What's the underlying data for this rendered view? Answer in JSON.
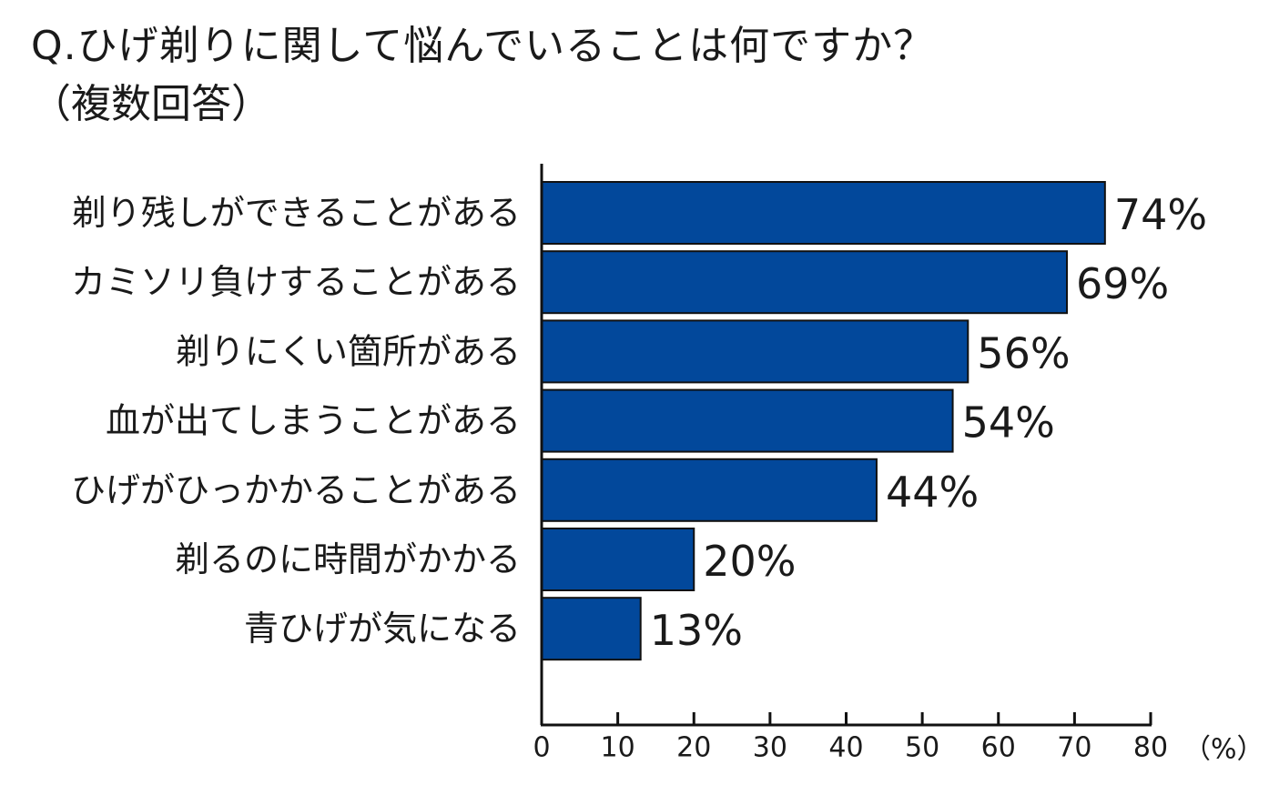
{
  "chart_data": {
    "type": "bar",
    "orientation": "horizontal",
    "title": "Q.ひげ剃りに関して悩んでいることは何ですか？",
    "subtitle": "（複数回答）",
    "categories": [
      "剃り残しができることがある",
      "カミソリ負けすることがある",
      "剃りにくい箇所がある",
      "血が出てしまうことがある",
      "ひげがひっかかることがある",
      "剃るのに時間がかかる",
      "青ひげが気になる"
    ],
    "values": [
      74,
      69,
      56,
      54,
      44,
      20,
      13
    ],
    "value_labels": [
      "74%",
      "69%",
      "56%",
      "54%",
      "44%",
      "20%",
      "13%"
    ],
    "xlim": [
      0,
      80
    ],
    "x_ticks": [
      0,
      10,
      20,
      30,
      40,
      50,
      60,
      70,
      80
    ],
    "x_tick_labels": [
      "0",
      "10",
      "20",
      "30",
      "40",
      "50",
      "60",
      "70",
      "80"
    ],
    "xlabel": "（%）",
    "bar_color": "#02489b",
    "grid": false,
    "legend": "none"
  }
}
